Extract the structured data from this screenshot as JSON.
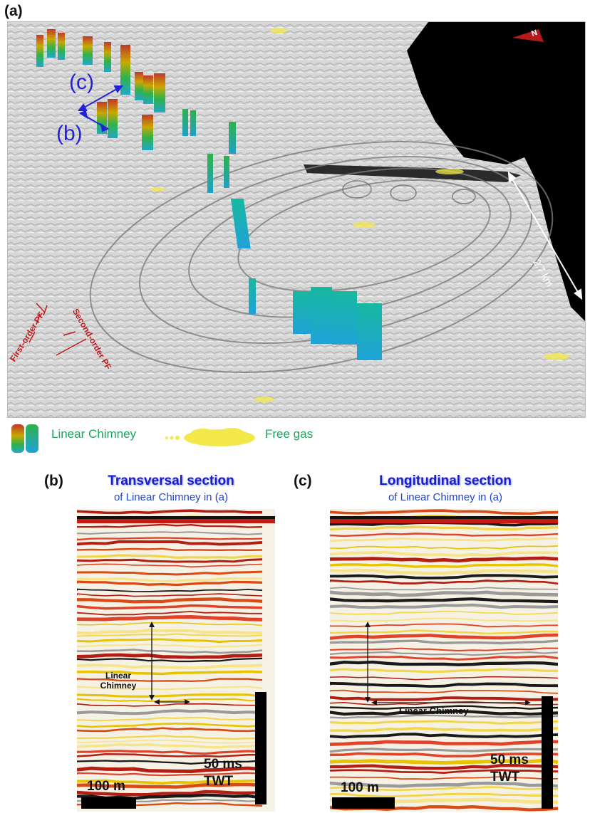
{
  "panel_a": {
    "letter": "(a)",
    "compass": "N",
    "scale_label": "2.7 km",
    "label_c": "(c)",
    "label_b": "(b)",
    "first_order_label": "First-order PF",
    "second_order_label": "Second-order PF"
  },
  "legend": {
    "chimney_label": "Linear Chimney",
    "gas_label": "Free gas"
  },
  "panel_b": {
    "letter": "(b)",
    "title": "Transversal section",
    "subtitle": "of Linear Chimney in (a)",
    "chimney_label_line1": "Linear",
    "chimney_label_line2": "Chimney",
    "vscale_label_line1": "50 ms",
    "vscale_label_line2": "TWT",
    "hscale_label": "100 m"
  },
  "panel_c": {
    "letter": "(c)",
    "title": "Longitudinal section",
    "subtitle": "of Linear Chimney in (a)",
    "chimney_label": "Linear Chimney",
    "vscale_label_line1": "50 ms",
    "vscale_label_line2": "TWT",
    "hscale_label": "100 m"
  },
  "colors": {
    "chimney_top": "#c0392b",
    "chimney_mid": "#c8b400",
    "chimney_low": "#2fb24a",
    "chimney_base": "#22a7c9",
    "free_gas": "#f3e84a",
    "annotation_blue": "#2323d6",
    "annotation_red": "#c0171b",
    "legend_green": "#1aa55b"
  }
}
